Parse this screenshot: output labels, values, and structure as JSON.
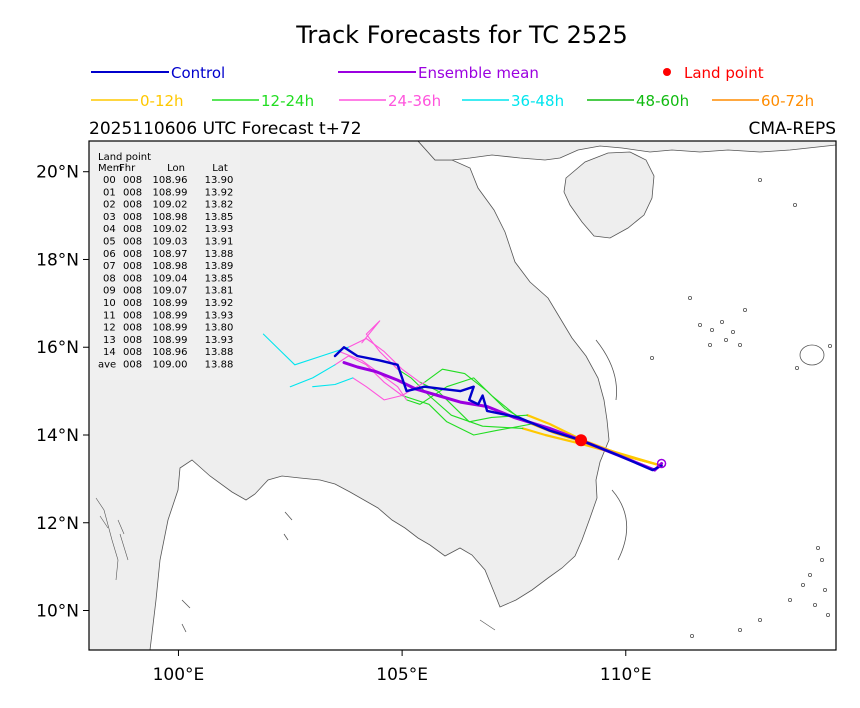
{
  "chart_data": {
    "type": "line",
    "title": "Track Forecasts for TC 2525",
    "subtitle_left": "2025110606 UTC Forecast t+72",
    "subtitle_right": "CMA-REPS",
    "xlim": [
      98.0,
      114.7
    ],
    "ylim": [
      9.1,
      20.7
    ],
    "x_ticks": [
      {
        "value": 100,
        "label": "100°E"
      },
      {
        "value": 105,
        "label": "105°E"
      },
      {
        "value": 110,
        "label": "110°E"
      }
    ],
    "y_ticks": [
      {
        "value": 10,
        "label": "10°N"
      },
      {
        "value": 12,
        "label": "12°N"
      },
      {
        "value": 14,
        "label": "14°N"
      },
      {
        "value": 16,
        "label": "16°N"
      },
      {
        "value": 18,
        "label": "18°N"
      },
      {
        "value": 20,
        "label": "20°N"
      }
    ],
    "legend_top": [
      {
        "label": "Control",
        "color": "#0000cc",
        "kind": "line"
      },
      {
        "label": "Ensemble mean",
        "color": "#9b00e0",
        "kind": "line"
      },
      {
        "label": "Land point",
        "color": "#ff0000",
        "kind": "dot"
      }
    ],
    "legend_bands": [
      {
        "label": "0-12h",
        "color": "#ffc800"
      },
      {
        "label": "12-24h",
        "color": "#22dd22"
      },
      {
        "label": "24-36h",
        "color": "#ff55dd"
      },
      {
        "label": "36-48h",
        "color": "#00e5ee"
      },
      {
        "label": "48-60h",
        "color": "#11bb11"
      },
      {
        "label": "60-72h",
        "color": "#ff8c00"
      }
    ],
    "land_table": {
      "title": "Land point",
      "headers": [
        "Mem",
        "Fhr",
        "Lon",
        "Lat"
      ],
      "rows": [
        [
          "00",
          "008",
          "108.96",
          "13.90"
        ],
        [
          "01",
          "008",
          "108.99",
          "13.92"
        ],
        [
          "02",
          "008",
          "109.02",
          "13.82"
        ],
        [
          "03",
          "008",
          "108.98",
          "13.85"
        ],
        [
          "04",
          "008",
          "109.02",
          "13.93"
        ],
        [
          "05",
          "008",
          "109.03",
          "13.91"
        ],
        [
          "06",
          "008",
          "108.97",
          "13.88"
        ],
        [
          "07",
          "008",
          "108.98",
          "13.89"
        ],
        [
          "08",
          "008",
          "109.04",
          "13.85"
        ],
        [
          "09",
          "008",
          "109.07",
          "13.81"
        ],
        [
          "10",
          "008",
          "108.99",
          "13.92"
        ],
        [
          "11",
          "008",
          "108.99",
          "13.93"
        ],
        [
          "12",
          "008",
          "108.99",
          "13.80"
        ],
        [
          "13",
          "008",
          "108.99",
          "13.93"
        ],
        [
          "14",
          "008",
          "108.96",
          "13.88"
        ],
        [
          "ave",
          "008",
          "109.00",
          "13.88"
        ]
      ]
    },
    "control_track": [
      [
        110.8,
        13.3
      ],
      [
        110.6,
        13.2
      ],
      [
        109.8,
        13.55
      ],
      [
        109.0,
        13.88
      ],
      [
        108.3,
        14.1
      ],
      [
        107.6,
        14.4
      ],
      [
        106.9,
        14.55
      ],
      [
        106.8,
        14.9
      ],
      [
        106.7,
        14.7
      ],
      [
        106.5,
        14.8
      ],
      [
        106.6,
        15.1
      ],
      [
        106.3,
        15.0
      ],
      [
        105.9,
        15.05
      ],
      [
        105.5,
        15.1
      ],
      [
        105.1,
        15.0
      ],
      [
        105.0,
        15.3
      ],
      [
        104.9,
        15.6
      ],
      [
        104.5,
        15.7
      ],
      [
        104.0,
        15.8
      ],
      [
        103.7,
        16.0
      ],
      [
        103.5,
        15.8
      ]
    ],
    "ensemble_mean_track": [
      [
        110.8,
        13.35
      ],
      [
        110.65,
        13.2
      ],
      [
        109.8,
        13.55
      ],
      [
        109.0,
        13.88
      ],
      [
        108.3,
        14.15
      ],
      [
        107.5,
        14.4
      ],
      [
        106.9,
        14.65
      ],
      [
        106.3,
        14.75
      ],
      [
        105.8,
        14.9
      ],
      [
        105.3,
        15.05
      ],
      [
        104.9,
        15.25
      ],
      [
        104.4,
        15.45
      ],
      [
        104.0,
        15.55
      ],
      [
        103.7,
        15.65
      ]
    ],
    "band_tracks": {
      "0-12h": [
        [
          [
            110.8,
            13.3
          ],
          [
            109.9,
            13.55
          ],
          [
            109.0,
            13.9
          ],
          [
            108.3,
            14.25
          ],
          [
            107.8,
            14.45
          ]
        ],
        [
          [
            110.8,
            13.3
          ],
          [
            109.8,
            13.6
          ],
          [
            109.0,
            13.85
          ],
          [
            108.4,
            14.05
          ],
          [
            107.9,
            14.25
          ]
        ],
        [
          [
            110.8,
            13.3
          ],
          [
            109.7,
            13.6
          ],
          [
            109.0,
            13.8
          ],
          [
            108.2,
            14.0
          ],
          [
            107.7,
            14.15
          ]
        ]
      ],
      "12-24h": [
        [
          [
            107.8,
            14.45
          ],
          [
            107.0,
            14.4
          ],
          [
            106.5,
            14.3
          ],
          [
            106.2,
            14.6
          ],
          [
            105.8,
            15.0
          ],
          [
            105.4,
            15.2
          ]
        ],
        [
          [
            107.9,
            14.25
          ],
          [
            107.1,
            14.1
          ],
          [
            106.6,
            14.0
          ],
          [
            106.0,
            14.3
          ],
          [
            105.6,
            14.7
          ],
          [
            105.0,
            14.9
          ]
        ],
        [
          [
            107.7,
            14.15
          ],
          [
            106.8,
            14.2
          ],
          [
            106.1,
            14.45
          ],
          [
            105.6,
            14.9
          ],
          [
            105.2,
            15.3
          ],
          [
            104.9,
            15.5
          ]
        ],
        [
          [
            107.8,
            14.3
          ],
          [
            107.3,
            14.6
          ],
          [
            106.9,
            15.0
          ],
          [
            106.4,
            15.4
          ],
          [
            105.9,
            15.5
          ],
          [
            105.5,
            15.2
          ]
        ],
        [
          [
            107.6,
            14.4
          ],
          [
            107.0,
            14.9
          ],
          [
            106.6,
            15.3
          ],
          [
            106.0,
            15.1
          ],
          [
            105.4,
            14.7
          ],
          [
            105.1,
            14.8
          ]
        ]
      ],
      "24-36h": [
        [
          [
            105.4,
            15.2
          ],
          [
            105.0,
            15.5
          ],
          [
            104.6,
            15.9
          ],
          [
            104.2,
            16.2
          ],
          [
            103.8,
            16.0
          ]
        ],
        [
          [
            105.0,
            14.9
          ],
          [
            104.6,
            15.2
          ],
          [
            104.2,
            15.6
          ],
          [
            103.8,
            15.8
          ],
          [
            103.5,
            15.6
          ]
        ],
        [
          [
            104.9,
            15.5
          ],
          [
            104.5,
            15.9
          ],
          [
            104.2,
            16.3
          ],
          [
            104.5,
            16.6
          ],
          [
            104.1,
            16.1
          ]
        ],
        [
          [
            105.5,
            15.2
          ],
          [
            105.0,
            14.9
          ],
          [
            104.6,
            14.8
          ],
          [
            104.2,
            15.1
          ],
          [
            103.9,
            15.3
          ]
        ],
        [
          [
            105.1,
            14.8
          ],
          [
            104.9,
            15.1
          ],
          [
            104.5,
            15.4
          ],
          [
            104.1,
            15.7
          ],
          [
            103.6,
            15.9
          ]
        ]
      ],
      "36-48h": [
        [
          [
            103.8,
            16.0
          ],
          [
            103.2,
            15.8
          ],
          [
            102.6,
            15.6
          ],
          [
            102.3,
            15.9
          ],
          [
            101.9,
            16.3
          ]
        ],
        [
          [
            103.5,
            15.6
          ],
          [
            103.0,
            15.3
          ],
          [
            102.5,
            15.1
          ]
        ],
        [
          [
            103.9,
            15.3
          ],
          [
            103.5,
            15.15
          ],
          [
            103.0,
            15.1
          ]
        ]
      ]
    }
  }
}
